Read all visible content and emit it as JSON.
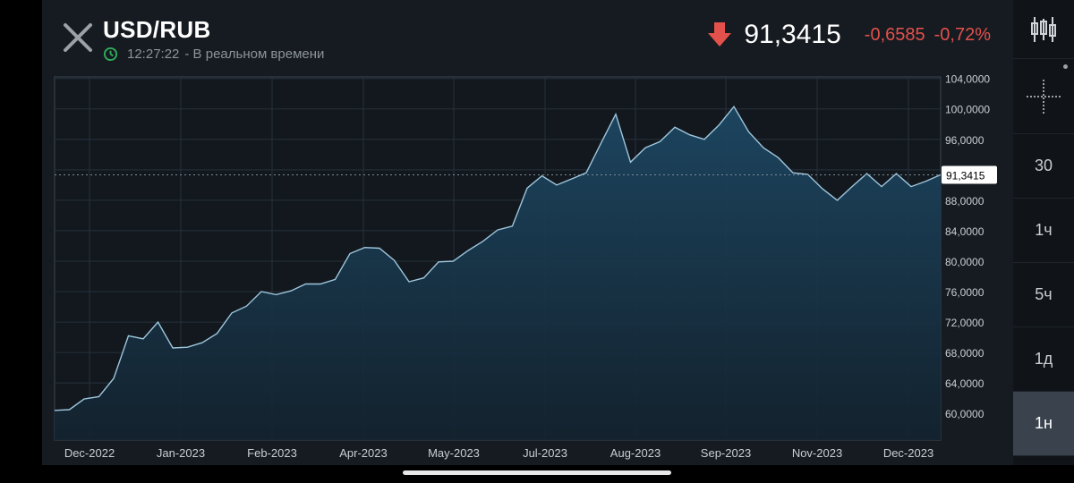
{
  "header": {
    "pair": "USD/RUB",
    "time": "12:27:22",
    "status": "- В реальном времени",
    "price": "91,3415",
    "change_abs": "-0,6585",
    "change_pct": "-0,72%"
  },
  "colors": {
    "down": "#e2514b",
    "line": "#9ec6dd",
    "clock": "#2eae5b"
  },
  "timeframes": [
    {
      "label": "30"
    },
    {
      "label": "1ч"
    },
    {
      "label": "5ч"
    },
    {
      "label": "1д"
    },
    {
      "label": "1н"
    }
  ],
  "active_timeframe": "1н",
  "chart_data": {
    "type": "area",
    "y_ticks": [
      "104,0000",
      "100,0000",
      "96,0000",
      "92,0000",
      "88,0000",
      "84,0000",
      "80,0000",
      "76,0000",
      "72,0000",
      "68,0000",
      "64,0000",
      "60,0000"
    ],
    "x_ticks": [
      "Dec-2022",
      "Jan-2023",
      "Feb-2023",
      "Apr-2023",
      "May-2023",
      "Jul-2023",
      "Aug-2023",
      "Sep-2023",
      "Nov-2023",
      "Dec-2023"
    ],
    "current_label": "91,3415",
    "current_value": 91.3415,
    "ylim": [
      56.5,
      104.2
    ],
    "series": [
      {
        "values": [
          60.4,
          60.5,
          61.9,
          62.2,
          64.6,
          70.2,
          69.8,
          72.0,
          68.6,
          68.7,
          69.3,
          70.5,
          73.2,
          74.1,
          76.0,
          75.6,
          76.1,
          77.0,
          77.0,
          77.6,
          81.0,
          81.8,
          81.7,
          80.1,
          77.3,
          77.8,
          79.9,
          80.0,
          81.4,
          82.6,
          84.1,
          84.6,
          89.6,
          91.2,
          90.0,
          90.8,
          91.6,
          95.5,
          99.3,
          93.0,
          94.9,
          95.7,
          97.6,
          96.6,
          96.0,
          97.9,
          100.3,
          97.0,
          94.9,
          93.6,
          91.6,
          91.4,
          89.5,
          88.0,
          89.8,
          91.5,
          89.8,
          91.5,
          89.8,
          90.5,
          91.3415
        ]
      }
    ]
  }
}
